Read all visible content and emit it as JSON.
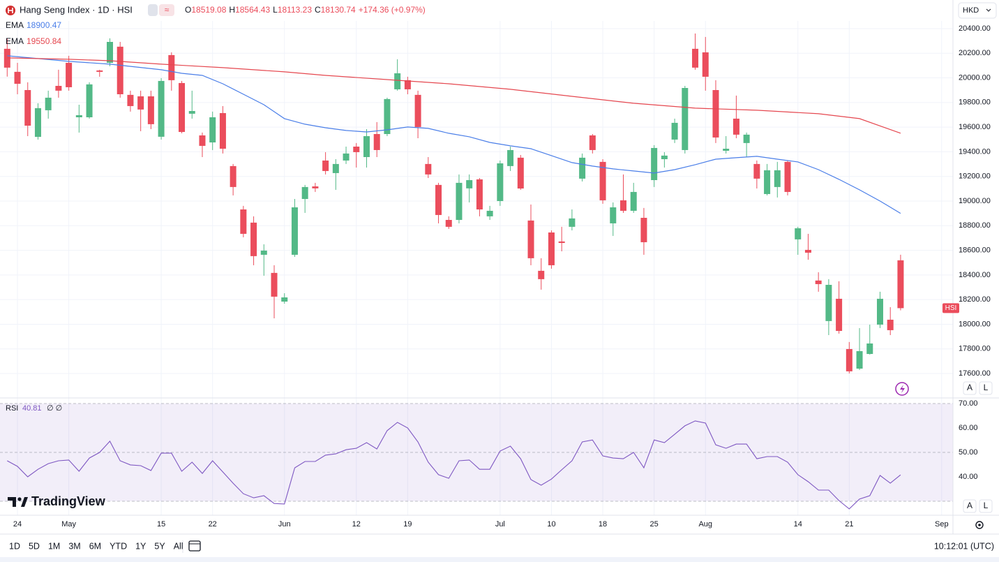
{
  "ui": {
    "title": "Hang Seng Index · 1D · HSI",
    "ohlc_labels": [
      "O",
      "H",
      "L",
      "C"
    ],
    "change": "+174.36 (+0.97%)",
    "currency": "HKD",
    "symbol_tag": "HSI",
    "rsi_params": "∅ ∅",
    "scale_buttons": [
      "A",
      "L"
    ],
    "ranges": [
      "1D",
      "5D",
      "1M",
      "3M",
      "6M",
      "YTD",
      "1Y",
      "5Y",
      "All"
    ],
    "clock": "10:12:01 (UTC)",
    "logo": "TradingView"
  },
  "chart_data": [
    {
      "type": "candlestick",
      "x": [
        0,
        1,
        2,
        3,
        4,
        5,
        6,
        7,
        8,
        9,
        10,
        11,
        12,
        13,
        14,
        15,
        16,
        17,
        18,
        19,
        20,
        21,
        22,
        23,
        24,
        25,
        26,
        27,
        28,
        29,
        30,
        31,
        32,
        33,
        34,
        35,
        36,
        37,
        38,
        39,
        40,
        41,
        42,
        43,
        44,
        45,
        46,
        47,
        48,
        49,
        50,
        51,
        52,
        53,
        54,
        55,
        56,
        57,
        58,
        59,
        60,
        61,
        62,
        63,
        64,
        65,
        66,
        67,
        68,
        69,
        70,
        71,
        72,
        73,
        74,
        75,
        76,
        77,
        78,
        79,
        80,
        81,
        82,
        83,
        84,
        85,
        86,
        87
      ],
      "open": [
        20236,
        20049,
        19901,
        19521,
        19737,
        19935,
        20122,
        19680,
        19680,
        20060,
        20122,
        20253,
        19862,
        19850,
        19850,
        19522,
        20185,
        19958,
        19709,
        19533,
        19476,
        19714,
        19284,
        18932,
        18825,
        18564,
        18417,
        18184,
        18564,
        19017,
        19119,
        19329,
        19227,
        19329,
        19442,
        19357,
        19544,
        19544,
        19907,
        19981,
        19862,
        19301,
        19131,
        18847,
        18847,
        19103,
        19176,
        18876,
        19000,
        19284,
        19352,
        18842,
        18434,
        18745,
        18672,
        18791,
        19182,
        19533,
        19318,
        18819,
        19006,
        18921,
        18864,
        19170,
        19340,
        19499,
        19414,
        20236,
        20207,
        19901,
        19408,
        19669,
        19471,
        19301,
        19057,
        19114,
        19318,
        18689,
        18604,
        18355,
        18026,
        18207,
        17799,
        17640,
        17759,
        17997,
        18037,
        18519.08
      ],
      "high": [
        20320,
        20122,
        19964,
        19794,
        19896,
        20066,
        20179,
        19782,
        19964,
        20066,
        20321,
        20292,
        19896,
        19896,
        19896,
        19998,
        20207,
        19975,
        19896,
        19556,
        19726,
        19771,
        19301,
        18961,
        18876,
        18649,
        18479,
        18252,
        19017,
        19131,
        19148,
        19397,
        19340,
        19442,
        19471,
        19584,
        19641,
        19839,
        20151,
        20009,
        19896,
        19357,
        19148,
        18876,
        19216,
        19216,
        19187,
        18961,
        19329,
        19442,
        19374,
        18972,
        18536,
        18762,
        18791,
        18932,
        19386,
        19544,
        19340,
        18989,
        19216,
        19148,
        18944,
        19454,
        19397,
        19669,
        19935,
        20360,
        20332,
        19981,
        19527,
        19856,
        19556,
        19329,
        19301,
        19318,
        19329,
        18791,
        18734,
        18422,
        18366,
        18349,
        17856,
        17969,
        17997,
        18264,
        18139,
        18564.43
      ],
      "low": [
        20010,
        19867,
        19527,
        19499,
        19669,
        19839,
        19896,
        19556,
        19669,
        20009,
        20094,
        19839,
        19726,
        19567,
        19584,
        19499,
        19896,
        19550,
        19669,
        19357,
        19414,
        19386,
        19046,
        18706,
        18479,
        18394,
        18048,
        18167,
        18547,
        18904,
        19074,
        19216,
        19091,
        19301,
        19272,
        19272,
        19357,
        19527,
        19896,
        19867,
        19510,
        19187,
        18819,
        18774,
        18819,
        18989,
        18876,
        18847,
        18961,
        19244,
        19091,
        18479,
        18281,
        18451,
        18592,
        18762,
        19159,
        19386,
        18978,
        18717,
        18904,
        18904,
        18564,
        19114,
        19272,
        19471,
        19386,
        20066,
        19896,
        19471,
        19386,
        19510,
        19357,
        19102,
        19046,
        19029,
        19046,
        18564,
        18524,
        18264,
        17912,
        17924,
        17601,
        17629,
        17754,
        17969,
        17912,
        18113.23
      ],
      "close": [
        20083,
        19952,
        19612,
        19754,
        19839,
        19896,
        19924,
        19697,
        19947,
        20049,
        20292,
        19867,
        19771,
        19743,
        19624,
        19975,
        19981,
        19561,
        19731,
        19448,
        19680,
        19425,
        19114,
        18734,
        18553,
        18598,
        18224,
        18218,
        18949,
        19114,
        19103,
        19244,
        19301,
        19386,
        19397,
        19527,
        19414,
        19828,
        20037,
        19907,
        19601,
        19216,
        18887,
        18791,
        19148,
        19170,
        18932,
        18921,
        19306,
        19414,
        19102,
        18536,
        18366,
        18479,
        18660,
        18859,
        19352,
        19414,
        19006,
        18949,
        18921,
        19074,
        18666,
        19431,
        19369,
        19635,
        19918,
        20083,
        20009,
        19516,
        19425,
        19539,
        19539,
        19182,
        19250,
        19250,
        19074,
        18779,
        18581,
        18326,
        18320,
        17946,
        17618,
        17782,
        17844,
        18207,
        17952,
        18130.74
      ],
      "up_color": "#53b987",
      "down_color": "#eb4d5c",
      "series": [
        {
          "name": "EMA",
          "color": "#4a7ee8",
          "x": [
            0,
            6,
            10,
            15,
            17,
            19,
            21,
            23,
            25,
            27,
            29,
            31,
            33,
            35,
            37,
            39,
            41,
            43,
            45,
            47,
            49,
            51,
            53,
            55,
            57,
            59,
            61,
            63,
            65,
            67,
            69,
            71,
            73,
            75,
            77,
            79,
            81,
            83,
            85,
            87
          ],
          "values": [
            20179,
            20134,
            20111,
            20066,
            20037,
            20020,
            19952,
            19867,
            19782,
            19669,
            19624,
            19595,
            19573,
            19561,
            19578,
            19601,
            19590,
            19550,
            19522,
            19476,
            19448,
            19425,
            19369,
            19312,
            19284,
            19261,
            19244,
            19227,
            19255,
            19295,
            19340,
            19352,
            19363,
            19340,
            19318,
            19255,
            19176,
            19091,
            19000,
            18900.47
          ]
        },
        {
          "name": "EMA",
          "color": "#e5474f",
          "x": [
            0,
            6,
            10,
            15,
            21,
            27,
            31,
            37,
            43,
            49,
            55,
            61,
            67,
            73,
            79,
            83,
            87
          ],
          "values": [
            20162,
            20151,
            20139,
            20111,
            20083,
            20049,
            20020,
            19986,
            19952,
            19907,
            19850,
            19794,
            19754,
            19737,
            19709,
            19669,
            19550.84
          ]
        }
      ],
      "xlim": [
        -0.7,
        92.1
      ],
      "xticks": [
        {
          "value": 1,
          "label": "24"
        },
        {
          "value": 6,
          "label": "May"
        },
        {
          "value": 15,
          "label": "15"
        },
        {
          "value": 20,
          "label": "22"
        },
        {
          "value": 27,
          "label": "Jun"
        },
        {
          "value": 34,
          "label": "12"
        },
        {
          "value": 39,
          "label": "19"
        },
        {
          "value": 48,
          "label": "Jul"
        },
        {
          "value": 53,
          "label": "10"
        },
        {
          "value": 58,
          "label": "18"
        },
        {
          "value": 63,
          "label": "25"
        },
        {
          "value": 68,
          "label": "Aug"
        },
        {
          "value": 77,
          "label": "14"
        },
        {
          "value": 82,
          "label": "21"
        },
        {
          "value": 91,
          "label": "Sep"
        }
      ],
      "ylim": [
        17402,
        20462
      ],
      "yticks": [
        {
          "value": 17600,
          "label": "17600.00"
        },
        {
          "value": 17800,
          "label": "17800.00"
        },
        {
          "value": 18000,
          "label": "18000.00"
        },
        {
          "value": 18200,
          "label": "18200.00"
        },
        {
          "value": 18400,
          "label": "18400.00"
        },
        {
          "value": 18600,
          "label": "18600.00"
        },
        {
          "value": 18800,
          "label": "18800.00"
        },
        {
          "value": 19000,
          "label": "19000.00"
        },
        {
          "value": 19200,
          "label": "19200.00"
        },
        {
          "value": 19400,
          "label": "19400.00"
        },
        {
          "value": 19600,
          "label": "19600.00"
        },
        {
          "value": 19800,
          "label": "19800.00"
        },
        {
          "value": 20000,
          "label": "20000.00"
        },
        {
          "value": 20200,
          "label": "20200.00"
        },
        {
          "value": 20400,
          "label": "20400.00"
        }
      ],
      "grid": true
    },
    {
      "type": "line",
      "title": "RSI",
      "color": "#7e57c2",
      "band_color": "#7e57c2",
      "x": [
        0,
        1,
        2,
        3,
        4,
        5,
        6,
        7,
        8,
        9,
        10,
        11,
        12,
        13,
        14,
        15,
        16,
        17,
        18,
        19,
        20,
        21,
        22,
        23,
        24,
        25,
        26,
        27,
        28,
        29,
        30,
        31,
        32,
        33,
        34,
        35,
        36,
        37,
        38,
        39,
        40,
        41,
        42,
        43,
        44,
        45,
        46,
        47,
        48,
        49,
        50,
        51,
        52,
        53,
        54,
        55,
        56,
        57,
        58,
        59,
        60,
        61,
        62,
        63,
        64,
        65,
        66,
        67,
        68,
        69,
        70,
        71,
        72,
        73,
        74,
        75,
        76,
        77,
        78,
        79,
        80,
        81,
        82,
        83,
        84,
        85,
        86,
        87
      ],
      "values": [
        46.6,
        44.3,
        40.0,
        43.1,
        45.4,
        46.6,
        46.9,
        42.3,
        47.7,
        50.0,
        54.6,
        46.6,
        44.9,
        44.6,
        42.6,
        49.7,
        49.7,
        42.3,
        46.0,
        41.4,
        46.6,
        42.0,
        37.4,
        33.1,
        31.4,
        32.3,
        29.1,
        28.9,
        43.7,
        46.3,
        46.3,
        48.9,
        49.4,
        51.1,
        51.7,
        54.0,
        51.4,
        58.9,
        62.3,
        60.0,
        54.3,
        46.0,
        40.9,
        39.4,
        46.6,
        46.9,
        43.1,
        43.1,
        50.6,
        52.6,
        47.4,
        38.9,
        36.6,
        39.1,
        42.9,
        46.6,
        54.3,
        55.1,
        48.6,
        47.7,
        47.4,
        50.0,
        43.7,
        55.1,
        54.0,
        57.4,
        60.9,
        62.9,
        62.0,
        53.1,
        51.7,
        53.4,
        53.4,
        47.4,
        48.3,
        48.3,
        46.0,
        40.9,
        38.0,
        34.6,
        34.6,
        30.3,
        26.9,
        30.9,
        32.3,
        40.6,
        37.4,
        40.81
      ],
      "levels": [
        30,
        50,
        70
      ],
      "xlim": [
        -0.7,
        92.1
      ],
      "ylim": [
        24.3,
        72.3
      ],
      "yticks": [
        {
          "value": 40,
          "label": "40.00"
        },
        {
          "value": 50,
          "label": "50.00"
        },
        {
          "value": 60,
          "label": "60.00"
        },
        {
          "value": 70,
          "label": "70.00"
        }
      ]
    }
  ]
}
